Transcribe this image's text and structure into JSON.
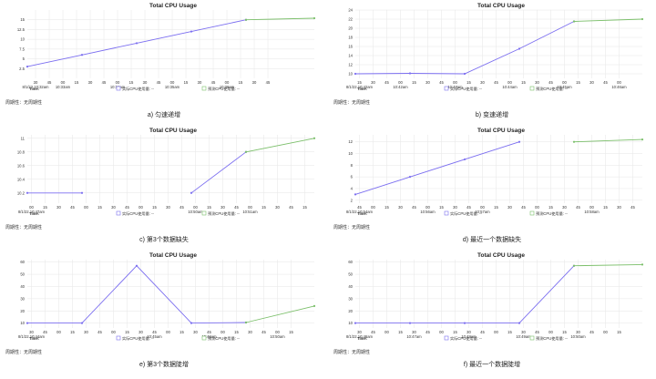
{
  "colors": {
    "actual": "#7b6ef0",
    "predicted": "#7bbf6a",
    "grid": "#e6e6e6"
  },
  "chart_data": [
    {
      "type": "line",
      "title": "Total CPU Usage",
      "caption": "a) 匀速递增",
      "period_label": "周期性：无周期性",
      "time_label": "Time:",
      "legend": {
        "actual": "实际CPU使用量:",
        "predicted": "预测CPU使用量:",
        "actual_value": "--",
        "predicted_value": "--"
      },
      "x_range": [
        0,
        21
      ],
      "ylim": [
        0,
        17.5
      ],
      "y_ticks": [
        2.5,
        5,
        7.5,
        10,
        12.5,
        15
      ],
      "y_tick_labels": [
        "2.5",
        "5",
        "7.5",
        "10",
        "12.5",
        "15"
      ],
      "x_ticks": [
        {
          "x": 0.6,
          "sub": "30",
          "main": "8/1/22 10:32am"
        },
        {
          "x": 1.6,
          "sub": "45"
        },
        {
          "x": 2.6,
          "sub": "00",
          "main": "10:33am"
        },
        {
          "x": 3.6,
          "sub": "15"
        },
        {
          "x": 4.6,
          "sub": "30"
        },
        {
          "x": 5.6,
          "sub": "45"
        },
        {
          "x": 6.6,
          "sub": "00",
          "main": "10:34am"
        },
        {
          "x": 7.6,
          "sub": "15"
        },
        {
          "x": 8.6,
          "sub": "30"
        },
        {
          "x": 9.6,
          "sub": "45"
        },
        {
          "x": 10.6,
          "sub": "00",
          "main": "10:35am"
        },
        {
          "x": 11.6,
          "sub": "15"
        },
        {
          "x": 12.6,
          "sub": "30"
        },
        {
          "x": 13.6,
          "sub": "45"
        },
        {
          "x": 14.6,
          "sub": "00",
          "main": "10:36am"
        },
        {
          "x": 15.6,
          "sub": "15"
        },
        {
          "x": 16.6,
          "sub": "30"
        },
        {
          "x": 17.6,
          "sub": "45"
        }
      ],
      "series": [
        {
          "role": "actual",
          "points": [
            [
              0,
              3
            ],
            [
              4,
              6
            ],
            [
              8,
              9
            ],
            [
              12,
              12
            ],
            [
              16,
              15
            ]
          ]
        },
        {
          "role": "predicted",
          "points": [
            [
              16,
              15
            ],
            [
              21,
              15.4
            ]
          ]
        }
      ]
    },
    {
      "type": "line",
      "title": "Total CPU Usage",
      "caption": "b) 变速递增",
      "period_label": "周期性：无周期性",
      "time_label": "Time:",
      "legend": {
        "actual": "实际CPU使用量:",
        "predicted": "预测CPU使用量:",
        "actual_value": "--",
        "predicted_value": "--"
      },
      "x_range": [
        0,
        21
      ],
      "ylim": [
        9,
        24
      ],
      "y_ticks": [
        10,
        12,
        14,
        16,
        18,
        20,
        22,
        24
      ],
      "y_tick_labels": [
        "10",
        "12",
        "14",
        "16",
        "18",
        "20",
        "22",
        "24"
      ],
      "x_ticks": [
        {
          "x": 0.3,
          "sub": "15",
          "main": "8/1/22 10:42am"
        },
        {
          "x": 1.3,
          "sub": "30"
        },
        {
          "x": 2.3,
          "sub": "45"
        },
        {
          "x": 3.3,
          "sub": "00",
          "main": "10:42am"
        },
        {
          "x": 4.3,
          "sub": "15"
        },
        {
          "x": 5.3,
          "sub": "30"
        },
        {
          "x": 6.3,
          "sub": "45"
        },
        {
          "x": 7.3,
          "sub": "00",
          "main": "10:43am"
        },
        {
          "x": 8.3,
          "sub": "15"
        },
        {
          "x": 9.3,
          "sub": "30"
        },
        {
          "x": 10.3,
          "sub": "45"
        },
        {
          "x": 11.3,
          "sub": "00",
          "main": "10:44am"
        },
        {
          "x": 12.3,
          "sub": "15"
        },
        {
          "x": 13.3,
          "sub": "30"
        },
        {
          "x": 14.3,
          "sub": "45"
        },
        {
          "x": 15.3,
          "sub": "00",
          "main": "10:45am"
        },
        {
          "x": 16.3,
          "sub": "15"
        },
        {
          "x": 17.3,
          "sub": "30"
        },
        {
          "x": 18.3,
          "sub": "45"
        },
        {
          "x": 19.3,
          "sub": "00",
          "main": "10:46am"
        }
      ],
      "series": [
        {
          "role": "actual",
          "points": [
            [
              0,
              10
            ],
            [
              4,
              10.1
            ],
            [
              8,
              10
            ],
            [
              12,
              15.5
            ],
            [
              16,
              21.5
            ]
          ]
        },
        {
          "role": "predicted",
          "points": [
            [
              16,
              21.5
            ],
            [
              21,
              22
            ]
          ]
        }
      ]
    },
    {
      "type": "line",
      "title": "Total CPU Usage",
      "caption": "c) 第3个数据缺失",
      "period_label": "周期性：无周期性",
      "time_label": "Time:",
      "legend": {
        "actual": "实际CPU使用量:",
        "predicted": "预测CPU使用量:",
        "actual_value": "--",
        "predicted_value": "--"
      },
      "x_range": [
        0,
        21
      ],
      "ylim": [
        10.05,
        11.05
      ],
      "y_ticks": [
        10.2,
        10.4,
        10.6,
        10.8,
        11
      ],
      "y_tick_labels": [
        "10.2",
        "10.4",
        "10.6",
        "10.8",
        "11"
      ],
      "x_ticks": [
        {
          "x": 0.3,
          "sub": "00",
          "main": "8/1/22 10:47am"
        },
        {
          "x": 1.3,
          "sub": "15"
        },
        {
          "x": 2.3,
          "sub": "30"
        },
        {
          "x": 3.3,
          "sub": "45"
        },
        {
          "x": 4.3,
          "sub": "00"
        },
        {
          "x": 5.3,
          "sub": "15"
        },
        {
          "x": 6.3,
          "sub": "30"
        },
        {
          "x": 7.3,
          "sub": "45"
        },
        {
          "x": 8.3,
          "sub": "00"
        },
        {
          "x": 9.3,
          "sub": "15"
        },
        {
          "x": 10.3,
          "sub": "30"
        },
        {
          "x": 11.3,
          "sub": "45"
        },
        {
          "x": 12.3,
          "sub": "00",
          "main": "10:50am"
        },
        {
          "x": 13.3,
          "sub": "15"
        },
        {
          "x": 14.3,
          "sub": "30"
        },
        {
          "x": 15.3,
          "sub": "45"
        },
        {
          "x": 16.3,
          "sub": "00",
          "main": "10:51am"
        },
        {
          "x": 17.3,
          "sub": "15"
        },
        {
          "x": 18.3,
          "sub": "30"
        },
        {
          "x": 19.3,
          "sub": "45"
        },
        {
          "x": 20.3,
          "sub": "15"
        }
      ],
      "series": [
        {
          "role": "actual",
          "points": [
            [
              0,
              10.2
            ],
            [
              4,
              10.2
            ]
          ]
        },
        {
          "role": "actual",
          "points": [
            [
              12,
              10.2
            ],
            [
              16,
              10.8
            ]
          ]
        },
        {
          "role": "predicted",
          "points": [
            [
              16,
              10.8
            ],
            [
              21,
              11
            ]
          ]
        }
      ]
    },
    {
      "type": "line",
      "title": "Total CPU Usage",
      "caption": "d) 最近一个数据缺失",
      "period_label": "周期性：无周期性",
      "time_label": "Time:",
      "legend": {
        "actual": "实际CPU使用量:",
        "predicted": "预测CPU使用量:",
        "actual_value": "--",
        "predicted_value": "--"
      },
      "x_range": [
        0,
        21
      ],
      "ylim": [
        1.5,
        13.2
      ],
      "y_ticks": [
        2,
        4,
        6,
        8,
        10,
        12
      ],
      "y_tick_labels": [
        "2",
        "4",
        "6",
        "8",
        "10",
        "12"
      ],
      "x_ticks": [
        {
          "x": 0.3,
          "sub": "45",
          "main": "8/1/22 10:54am"
        },
        {
          "x": 1.3,
          "sub": "00"
        },
        {
          "x": 2.3,
          "sub": "15"
        },
        {
          "x": 3.3,
          "sub": "30"
        },
        {
          "x": 4.3,
          "sub": "45"
        },
        {
          "x": 5.3,
          "sub": "00",
          "main": "10:56am"
        },
        {
          "x": 6.3,
          "sub": "15"
        },
        {
          "x": 7.3,
          "sub": "30"
        },
        {
          "x": 8.3,
          "sub": "45"
        },
        {
          "x": 9.3,
          "sub": "00",
          "main": "10:57am"
        },
        {
          "x": 10.3,
          "sub": "15"
        },
        {
          "x": 11.3,
          "sub": "30"
        },
        {
          "x": 12.3,
          "sub": "45"
        },
        {
          "x": 13.3,
          "sub": "00"
        },
        {
          "x": 14.3,
          "sub": "15"
        },
        {
          "x": 15.3,
          "sub": "30"
        },
        {
          "x": 16.3,
          "sub": "45"
        },
        {
          "x": 17.3,
          "sub": "00",
          "main": "10:58am"
        },
        {
          "x": 18.3,
          "sub": "15"
        },
        {
          "x": 19.3,
          "sub": "30"
        },
        {
          "x": 20.3,
          "sub": "45"
        }
      ],
      "series": [
        {
          "role": "actual",
          "points": [
            [
              0,
              3
            ],
            [
              4,
              6
            ],
            [
              8,
              9
            ],
            [
              12,
              12
            ]
          ]
        },
        {
          "role": "predicted",
          "points": [
            [
              16,
              12
            ],
            [
              21,
              12.4
            ]
          ]
        }
      ]
    },
    {
      "type": "line",
      "title": "Total CPU Usage",
      "caption": "e) 第3个数据陡增",
      "period_label": "周期性：无周期性",
      "time_label": "Time:",
      "legend": {
        "actual": "实际CPU使用量:",
        "predicted": "预测CPU使用量:",
        "actual_value": "--",
        "predicted_value": "--"
      },
      "x_range": [
        0,
        21
      ],
      "ylim": [
        6,
        62
      ],
      "y_ticks": [
        10,
        20,
        30,
        40,
        50,
        60
      ],
      "y_tick_labels": [
        "10",
        "20",
        "30",
        "40",
        "50",
        "60"
      ],
      "x_ticks": [
        {
          "x": 0.3,
          "sub": "30",
          "main": "8/1/22 10:44am"
        },
        {
          "x": 1.3,
          "sub": "45"
        },
        {
          "x": 2.3,
          "sub": "00"
        },
        {
          "x": 3.3,
          "sub": "15"
        },
        {
          "x": 4.3,
          "sub": "30"
        },
        {
          "x": 5.3,
          "sub": "45"
        },
        {
          "x": 6.3,
          "sub": "00"
        },
        {
          "x": 7.3,
          "sub": "15"
        },
        {
          "x": 8.3,
          "sub": "30"
        },
        {
          "x": 9.3,
          "sub": "45",
          "main": "10:45am"
        },
        {
          "x": 10.3,
          "sub": "00"
        },
        {
          "x": 11.3,
          "sub": "15"
        },
        {
          "x": 12.3,
          "sub": "30"
        },
        {
          "x": 13.3,
          "sub": "45",
          "main": "10:46am"
        },
        {
          "x": 14.3,
          "sub": "00"
        },
        {
          "x": 15.3,
          "sub": "15"
        },
        {
          "x": 16.3,
          "sub": "30"
        },
        {
          "x": 17.3,
          "sub": "45"
        },
        {
          "x": 18.3,
          "sub": "00",
          "main": "10:50am"
        },
        {
          "x": 19.3,
          "sub": "15"
        }
      ],
      "series": [
        {
          "role": "actual",
          "points": [
            [
              0,
              10
            ],
            [
              4,
              10
            ],
            [
              8,
              57
            ],
            [
              12,
              10
            ],
            [
              16,
              10.5
            ]
          ]
        },
        {
          "role": "predicted",
          "points": [
            [
              16,
              10.5
            ],
            [
              21,
              24
            ]
          ]
        }
      ]
    },
    {
      "type": "line",
      "title": "Total CPU Usage",
      "caption": "f) 最近一个数据陡增",
      "period_label": "周期性：无周期性",
      "time_label": "Time:",
      "legend": {
        "actual": "实际CPU使用量:",
        "predicted": "预测CPU使用量:",
        "actual_value": "--",
        "predicted_value": "--"
      },
      "x_range": [
        0,
        21
      ],
      "ylim": [
        6,
        62
      ],
      "y_ticks": [
        10,
        20,
        30,
        40,
        50,
        60
      ],
      "y_tick_labels": [
        "10",
        "20",
        "30",
        "40",
        "50",
        "60"
      ],
      "x_ticks": [
        {
          "x": 0.3,
          "sub": "30",
          "main": "8/1/22 10:46am"
        },
        {
          "x": 1.3,
          "sub": "45"
        },
        {
          "x": 2.3,
          "sub": "00"
        },
        {
          "x": 3.3,
          "sub": "15"
        },
        {
          "x": 4.3,
          "sub": "30",
          "main": "10:47am"
        },
        {
          "x": 5.3,
          "sub": "45"
        },
        {
          "x": 6.3,
          "sub": "00"
        },
        {
          "x": 7.3,
          "sub": "15"
        },
        {
          "x": 8.3,
          "sub": "30",
          "main": "10:48am"
        },
        {
          "x": 9.3,
          "sub": "45"
        },
        {
          "x": 10.3,
          "sub": "00"
        },
        {
          "x": 11.3,
          "sub": "15"
        },
        {
          "x": 12.3,
          "sub": "30",
          "main": "10:49am"
        },
        {
          "x": 13.3,
          "sub": "45"
        },
        {
          "x": 14.3,
          "sub": "00"
        },
        {
          "x": 15.3,
          "sub": "15"
        },
        {
          "x": 16.3,
          "sub": "30",
          "main": "10:50am"
        },
        {
          "x": 17.3,
          "sub": "45"
        },
        {
          "x": 18.3,
          "sub": "00"
        },
        {
          "x": 19.3,
          "sub": "15"
        }
      ],
      "series": [
        {
          "role": "actual",
          "points": [
            [
              0,
              10
            ],
            [
              4,
              10
            ],
            [
              8,
              10
            ],
            [
              12,
              10
            ],
            [
              16,
              57
            ]
          ]
        },
        {
          "role": "predicted",
          "points": [
            [
              16,
              57
            ],
            [
              21,
              58
            ]
          ]
        }
      ]
    }
  ]
}
